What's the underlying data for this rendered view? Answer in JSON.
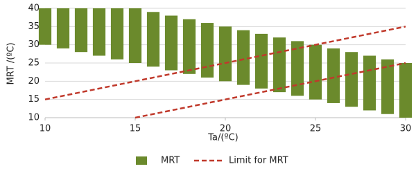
{
  "chart_data": {
    "type": "floating-bar",
    "xlabel": "Ta/(ºC)",
    "ylabel": "MRT /(ºC)",
    "x": [
      10,
      11,
      12,
      13,
      14,
      15,
      16,
      17,
      18,
      19,
      20,
      21,
      22,
      23,
      24,
      25,
      26,
      27,
      28,
      29,
      30
    ],
    "series": [
      {
        "name": "MRT",
        "color": "#6b8a2c",
        "low": [
          30,
          29,
          28,
          27,
          26,
          25,
          24,
          23,
          22,
          21,
          20,
          19,
          18,
          17,
          16,
          15,
          14,
          13,
          12,
          11,
          10
        ],
        "high": [
          40,
          40,
          40,
          40,
          40,
          40,
          39,
          38,
          37,
          36,
          35,
          34,
          33,
          32,
          31,
          30,
          29,
          28,
          27,
          26,
          25
        ]
      }
    ],
    "limit": {
      "name": "Limit for MRT",
      "color": "#c0392b",
      "lines": [
        {
          "x": [
            10,
            30
          ],
          "y": [
            15,
            35
          ]
        },
        {
          "x": [
            15,
            30
          ],
          "y": [
            10,
            25
          ]
        }
      ]
    },
    "xlim": [
      10,
      30
    ],
    "ylim": [
      10,
      40
    ],
    "xticks": [
      10,
      15,
      20,
      25,
      30
    ],
    "yticks": [
      10,
      15,
      20,
      25,
      30,
      35,
      40
    ],
    "grid": true
  }
}
